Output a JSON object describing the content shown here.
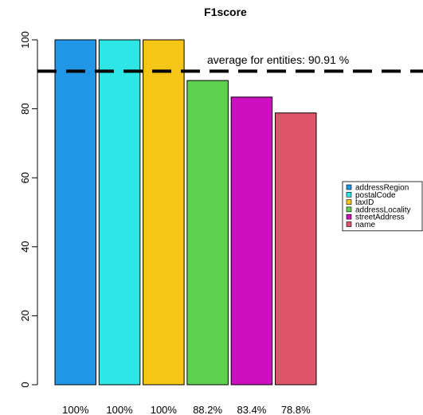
{
  "chart_data": {
    "type": "bar",
    "title": "F1score",
    "categories": [
      "addressRegion",
      "postalCode",
      "taxID",
      "addressLocality",
      "streetAddress",
      "name"
    ],
    "values": [
      100,
      100,
      100,
      88.2,
      83.4,
      78.8
    ],
    "value_labels": [
      "100%",
      "100%",
      "100%",
      "88.2%",
      "83.4%",
      "78.8%"
    ],
    "colors": [
      "#2196e6",
      "#2ee6e6",
      "#f5c518",
      "#5ecf4f",
      "#cc0fc0",
      "#de5469"
    ],
    "ylim": [
      0,
      100
    ],
    "yticks": [
      0,
      20,
      40,
      60,
      80,
      100
    ],
    "average": {
      "value": 90.91,
      "label": "average for entities:  90.91 %"
    },
    "legend": {
      "position": "right",
      "entries": [
        "addressRegion",
        "postalCode",
        "taxID",
        "addressLocality",
        "streetAddress",
        "name"
      ]
    },
    "grid": false
  }
}
